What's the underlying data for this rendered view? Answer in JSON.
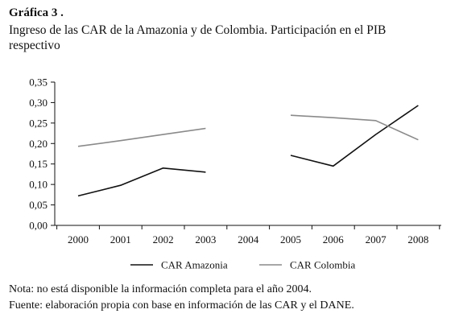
{
  "figure": {
    "label": "Gráfica 3 .",
    "title": "Ingreso de las CAR de la Amazonia y de Colombia. Participación en el PIB respectivo"
  },
  "chart_data": {
    "type": "line",
    "categories": [
      "2000",
      "2001",
      "2002",
      "2003",
      "2004",
      "2005",
      "2006",
      "2007",
      "2008"
    ],
    "ylim": [
      0,
      0.35
    ],
    "yticks": [
      "0,00",
      "0,05",
      "0,10",
      "0,15",
      "0,20",
      "0,25",
      "0,30",
      "0,35"
    ],
    "grid": false,
    "legend_position": "bottom",
    "series": [
      {
        "name": "CAR Amazonia",
        "color": "#111111",
        "values": [
          0.072,
          0.098,
          0.14,
          0.13,
          null,
          0.171,
          0.145,
          0.222,
          0.293
        ]
      },
      {
        "name": "CAR Colombia",
        "color": "#8a8a8a",
        "values": [
          0.193,
          0.207,
          0.222,
          0.237,
          null,
          0.269,
          0.263,
          0.256,
          0.209
        ]
      }
    ]
  },
  "notes": {
    "nota": "Nota: no está disponible la información completa para el año 2004.",
    "fuente": "Fuente: elaboración propia con base en información de las CAR y el DANE."
  }
}
